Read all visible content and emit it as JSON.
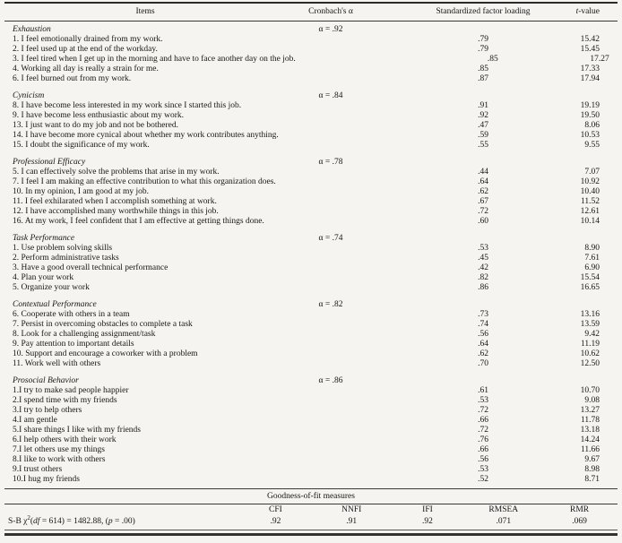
{
  "table": {
    "headers": {
      "items": "Items",
      "cronbach": "Cronbach's α",
      "loading": "Standardized factor loading",
      "tvalue_t": "t",
      "tvalue_rest": "-value"
    },
    "sections": [
      {
        "title": "Exhaustion",
        "alpha": "α = .92",
        "rows": [
          {
            "item": "1. I feel emotionally drained from my work.",
            "loading": ".79",
            "t": "15.42"
          },
          {
            "item": "2. I feel used up at the end of the workday.",
            "loading": ".79",
            "t": "15.45"
          },
          {
            "item": "3. I feel tired when I get up in the morning and have to face another day on the job.",
            "loading": ".85",
            "t": "17.27"
          },
          {
            "item": "4. Working all day is really a strain for me.",
            "loading": ".85",
            "t": "17.33"
          },
          {
            "item": "6. I feel burned out from my work.",
            "loading": ".87",
            "t": "17.94"
          }
        ]
      },
      {
        "title": "Cynicism",
        "alpha": "α = .84",
        "rows": [
          {
            "item": "8. I have become less interested in my work since I started this job.",
            "loading": ".91",
            "t": "19.19"
          },
          {
            "item": "9. I have become less enthusiastic about my work.",
            "loading": ".92",
            "t": "19.50"
          },
          {
            "item": "13. I just want to do my job and not be bothered.",
            "loading": ".47",
            "t": "8.06"
          },
          {
            "item": "14. I have become more cynical about whether my work contributes anything.",
            "loading": ".59",
            "t": "10.53"
          },
          {
            "item": "15. I doubt the significance of my work.",
            "loading": ".55",
            "t": "9.55"
          }
        ]
      },
      {
        "title": "Professional Efficacy",
        "alpha": "α = .78",
        "rows": [
          {
            "item": "5. I can effectively solve the problems that arise in my work.",
            "loading": ".44",
            "t": "7.07"
          },
          {
            "item": "7. I feel I am making an effective contribution to what this organization does.",
            "loading": ".64",
            "t": "10.92"
          },
          {
            "item": "10. In my opinion, I am good at my job.",
            "loading": ".62",
            "t": "10.40"
          },
          {
            "item": "11. I feel exhilarated when I accomplish something at work.",
            "loading": ".67",
            "t": "11.52"
          },
          {
            "item": "12. I have accomplished many worthwhile things in this job.",
            "loading": ".72",
            "t": "12.61"
          },
          {
            "item": "16. At my work, I feel confident that I am effective at getting things done.",
            "loading": ".60",
            "t": "10.14"
          }
        ]
      },
      {
        "title": "Task Performance",
        "alpha": "α = .74",
        "rows": [
          {
            "item": "1. Use problem solving skills",
            "loading": ".53",
            "t": "8.90"
          },
          {
            "item": "2. Perform administrative tasks",
            "loading": ".45",
            "t": "7.61"
          },
          {
            "item": "3. Have a good overall technical performance",
            "loading": ".42",
            "t": "6.90"
          },
          {
            "item": "4. Plan your work",
            "loading": ".82",
            "t": "15.54"
          },
          {
            "item": "5. Organize your work",
            "loading": ".86",
            "t": "16.65"
          }
        ]
      },
      {
        "title": "Contextual Performance",
        "alpha": "α = .82",
        "rows": [
          {
            "item": "6. Cooperate with others in a team",
            "loading": ".73",
            "t": "13.16"
          },
          {
            "item": "7. Persist in overcoming obstacles to complete a task",
            "loading": ".74",
            "t": "13.59"
          },
          {
            "item": "8. Look for a challenging assignment/task",
            "loading": ".56",
            "t": "9.42"
          },
          {
            "item": "9. Pay attention to important details",
            "loading": ".64",
            "t": "11.19"
          },
          {
            "item": "10. Support and encourage a coworker with a problem",
            "loading": ".62",
            "t": "10.62"
          },
          {
            "item": "11. Work well with others",
            "loading": ".70",
            "t": "12.50"
          }
        ]
      },
      {
        "title": "Prosocial Behavior",
        "alpha": "α = .86",
        "rows": [
          {
            "item": "1.I try to make sad people happier",
            "loading": ".61",
            "t": "10.70"
          },
          {
            "item": "2.I spend time with my friends",
            "loading": ".53",
            "t": "9.08"
          },
          {
            "item": "3.I try to help others",
            "loading": ".72",
            "t": "13.27"
          },
          {
            "item": "4.I am gentle",
            "loading": ".66",
            "t": "11.78"
          },
          {
            "item": "5.I share things I like with my friends",
            "loading": ".72",
            "t": "13.18"
          },
          {
            "item": "6.I help others with their work",
            "loading": ".76",
            "t": "14.24"
          },
          {
            "item": "7.I let others use my things",
            "loading": ".66",
            "t": "11.66"
          },
          {
            "item": "8.I like to work with others",
            "loading": ".56",
            "t": "9.67"
          },
          {
            "item": "9.I trust others",
            "loading": ".53",
            "t": "8.98"
          },
          {
            "item": "10.I hug my friends",
            "loading": ".52",
            "t": "8.71"
          }
        ]
      }
    ],
    "fit": {
      "title": "Goodness-of-fit measures",
      "columns": [
        "CFI",
        "NNFI",
        "IFI",
        "RMSEA",
        "RMR"
      ],
      "values": [
        ".92",
        ".91",
        ".92",
        ".071",
        ".069"
      ],
      "label": {
        "prefix": "S-B χ",
        "sup": "2",
        "mid1": "(",
        "df": "df",
        "mid2": " = 614) = 1482.88, (",
        "p": "p",
        "end": " = .00)"
      }
    }
  }
}
